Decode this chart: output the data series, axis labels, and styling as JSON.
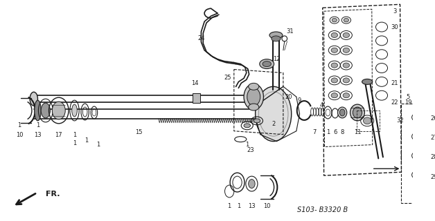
{
  "bg_color": "#ffffff",
  "line_color": "#1a1a1a",
  "diagram_code": "S103- B3320 B",
  "fr_label": "FR.",
  "fig_width": 6.28,
  "fig_height": 3.2,
  "dpi": 100
}
